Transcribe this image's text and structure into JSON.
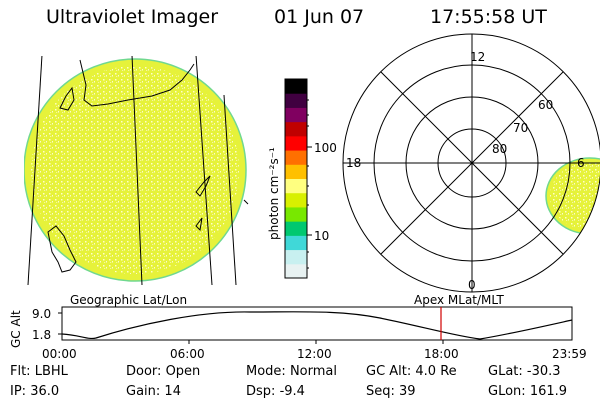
{
  "header": {
    "instrument": "Ultraviolet Imager",
    "date": "01 Jun 07",
    "time": "17:55:58 UT"
  },
  "colorbar": {
    "unit_label": "photon cm⁻²s⁻¹",
    "tick_100": "100",
    "tick_10": "10",
    "colors": [
      "#e8f2f2",
      "#c8f0f0",
      "#40d8d8",
      "#00c870",
      "#78e800",
      "#d8f000",
      "#ffff80",
      "#ffc000",
      "#ff7000",
      "#ff0000",
      "#c00000",
      "#800060",
      "#400040",
      "#000000"
    ]
  },
  "left_panel": {
    "label": "Geographic Lat/Lon",
    "disk_color": "#e6f23a"
  },
  "right_panel": {
    "label": "Apex MLat/MLT",
    "mlt_12": "12",
    "mlt_18": "18",
    "mlt_6": "6",
    "mlt_0": "0",
    "lat_60": "60",
    "lat_70": "70",
    "lat_80": "80"
  },
  "altitude_strip": {
    "axis_label": "GC Alt",
    "y_max": "9.0",
    "y_min": "1.8",
    "x_ticks": [
      "00:00",
      "06:00",
      "12:00",
      "18:00",
      "23:59"
    ],
    "current_marker_color": "#d00000"
  },
  "footer": {
    "row1": [
      {
        "label": "Flt:",
        "value": "LBHL"
      },
      {
        "label": "Door:",
        "value": "Open"
      },
      {
        "label": "Mode:",
        "value": "Normal"
      },
      {
        "label": "GC Alt:",
        "value": "4.0 Re"
      },
      {
        "label": "GLat:",
        "value": "-30.3"
      }
    ],
    "row2": [
      {
        "label": "IP:",
        "value": "36.0"
      },
      {
        "label": "Gain:",
        "value": "14"
      },
      {
        "label": "Dsp:",
        "value": "-9.4"
      },
      {
        "label": "Seq:",
        "value": "39"
      },
      {
        "label": "GLon:",
        "value": "161.9"
      }
    ]
  }
}
